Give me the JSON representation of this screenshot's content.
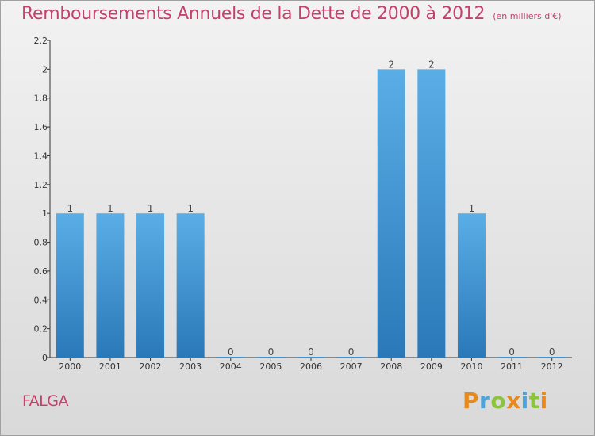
{
  "header": {
    "title": "Remboursements Annuels de la Dette de 2000 à 2012",
    "subtitle": "(en milliers d'€)"
  },
  "commune": "FALGA",
  "brand": {
    "letters": [
      "P",
      "r",
      "o",
      "x",
      "i",
      "t",
      "i"
    ],
    "colors": [
      "#e8891e",
      "#4ea3d9",
      "#8cc43f",
      "#e8891e",
      "#4ea3d9",
      "#8cc43f",
      "#e8891e"
    ]
  },
  "chart_data": {
    "type": "bar",
    "title": "Remboursements Annuels de la Dette de 2000 à 2012",
    "subtitle": "(en milliers d'€)",
    "categories": [
      "2000",
      "2001",
      "2002",
      "2003",
      "2004",
      "2005",
      "2006",
      "2007",
      "2008",
      "2009",
      "2010",
      "2011",
      "2012"
    ],
    "values": [
      1,
      1,
      1,
      1,
      0,
      0,
      0,
      0,
      2,
      2,
      1,
      0,
      0
    ],
    "data_labels": [
      "1",
      "1",
      "1",
      "1",
      "0",
      "0",
      "0",
      "0",
      "2",
      "2",
      "1",
      "0",
      "0"
    ],
    "ylim": [
      0,
      2.2
    ],
    "y_ticks": [
      0,
      0.2,
      0.4,
      0.6,
      0.8,
      1,
      1.2,
      1.4,
      1.6,
      1.8,
      2,
      2.2
    ],
    "y_tick_labels": [
      "0",
      "0.2",
      "0.4",
      "0.6",
      "0.8",
      "1",
      "1.2",
      "1.4",
      "1.6",
      "1.8",
      "2",
      "2.2"
    ],
    "grid": false,
    "bar_color_top": "#5aaee6",
    "bar_color_bottom": "#2a78b8"
  }
}
